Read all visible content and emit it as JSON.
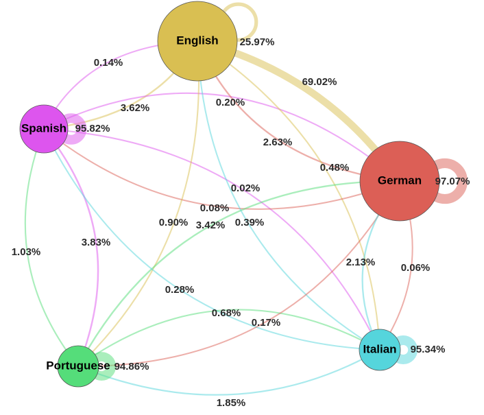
{
  "nodes": [
    {
      "id": "en",
      "label": "English"
    },
    {
      "id": "sp",
      "label": "Spanish"
    },
    {
      "id": "de",
      "label": "German"
    },
    {
      "id": "it",
      "label": "Italian"
    },
    {
      "id": "pt",
      "label": "Portuguese"
    }
  ],
  "edges": [
    {
      "from": "en",
      "to": "en",
      "value": 25.97,
      "label": "25.97%"
    },
    {
      "from": "en",
      "to": "de",
      "value": 69.02,
      "label": "69.02%"
    },
    {
      "from": "sp",
      "to": "en",
      "value": 0.14,
      "label": "0.14%"
    },
    {
      "from": "en",
      "to": "sp",
      "value": 3.62,
      "label": "3.62%"
    },
    {
      "from": "sp",
      "to": "sp",
      "value": 95.82,
      "label": "95.82%"
    },
    {
      "from": "sp",
      "to": "de",
      "value": 0.2,
      "label": "0.20%"
    },
    {
      "from": "de",
      "to": "en",
      "value": 2.63,
      "label": "2.63%"
    },
    {
      "from": "en",
      "to": "it",
      "value": 0.48,
      "label": "0.48%"
    },
    {
      "from": "sp",
      "to": "it",
      "value": 0.02,
      "label": "0.02%"
    },
    {
      "from": "de",
      "to": "sp",
      "value": 0.08,
      "label": "0.08%"
    },
    {
      "from": "en",
      "to": "pt",
      "value": 0.9,
      "label": "0.90%"
    },
    {
      "from": "pt",
      "to": "de",
      "value": 3.42,
      "label": "3.42%"
    },
    {
      "from": "it",
      "to": "en",
      "value": 0.39,
      "label": "0.39%"
    },
    {
      "from": "pt",
      "to": "sp",
      "value": 1.03,
      "label": "1.03%"
    },
    {
      "from": "sp",
      "to": "pt",
      "value": 3.83,
      "label": "3.83%"
    },
    {
      "from": "it",
      "to": "sp",
      "value": 0.28,
      "label": "0.28%"
    },
    {
      "from": "pt",
      "to": "it",
      "value": 0.68,
      "label": "0.68%"
    },
    {
      "from": "de",
      "to": "pt",
      "value": 0.17,
      "label": "0.17%"
    },
    {
      "from": "it",
      "to": "de",
      "value": 2.13,
      "label": "2.13%"
    },
    {
      "from": "de",
      "to": "it",
      "value": 0.06,
      "label": "0.06%"
    },
    {
      "from": "it",
      "to": "pt",
      "value": 1.85,
      "label": "1.85%"
    },
    {
      "from": "de",
      "to": "de",
      "value": 97.07,
      "label": "97.07%"
    },
    {
      "from": "it",
      "to": "it",
      "value": 95.34,
      "label": "95.34%"
    },
    {
      "from": "pt",
      "to": "pt",
      "value": 94.86,
      "label": "94.86%"
    }
  ]
}
